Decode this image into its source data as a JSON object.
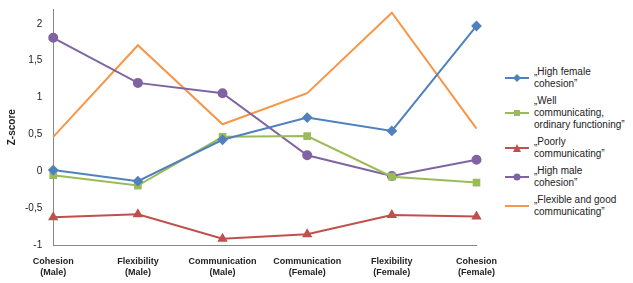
{
  "chart_data": {
    "type": "line",
    "y_label": "Z-score",
    "categories": [
      "Cohesion (Male)",
      "Flexibility (Male)",
      "Communication (Male)",
      "Communication (Female)",
      "Flexibility (Female)",
      "Cohesion (Female)"
    ],
    "series": [
      {
        "name": "„High female cohesion”",
        "color": "#4f81bd",
        "marker": "diamond",
        "values": [
          0.02,
          -0.13,
          0.43,
          0.73,
          0.55,
          1.97
        ]
      },
      {
        "name": "„Well communicating, ordinary functioning”",
        "color": "#9bbb59",
        "marker": "square",
        "values": [
          -0.05,
          -0.19,
          0.47,
          0.48,
          -0.07,
          -0.15
        ]
      },
      {
        "name": "„Poorly communicating”",
        "color": "#c0504d",
        "marker": "triangle",
        "values": [
          -0.62,
          -0.58,
          -0.91,
          -0.85,
          -0.59,
          -0.61
        ]
      },
      {
        "name": "„High male cohesion”",
        "color": "#8064a2",
        "marker": "circle",
        "values": [
          1.81,
          1.2,
          1.06,
          0.22,
          -0.06,
          0.16
        ]
      },
      {
        "name": "„Flexible  and good communicating”",
        "color": "#f79646",
        "marker": "none",
        "values": [
          0.47,
          1.71,
          0.64,
          1.06,
          2.15,
          0.58
        ]
      }
    ],
    "ylim": [
      -1,
      2.2
    ],
    "yticks": [
      -1,
      {
        "value": -0.5,
        "label": "-0,5"
      },
      0,
      {
        "value": 0.5,
        "label": "0,5"
      },
      1,
      {
        "value": 1.5,
        "label": "1,5"
      },
      2
    ],
    "grid": false,
    "legend": "right"
  }
}
